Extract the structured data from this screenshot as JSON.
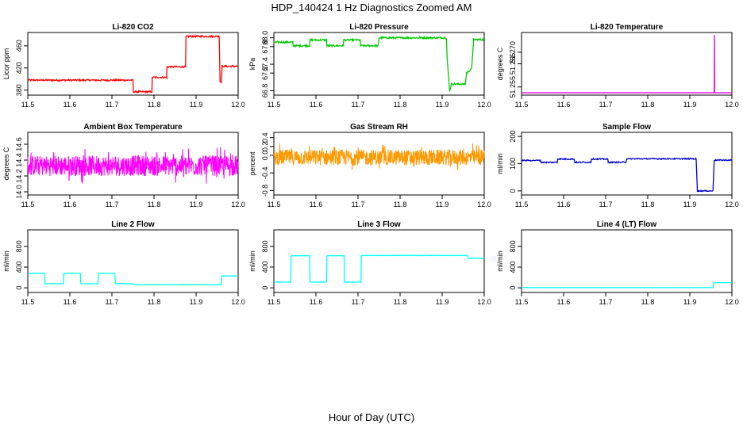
{
  "title": "HDP_140424  1 Hz Diagnostics Zoomed AM",
  "xlabel": "Hour of Day (UTC)",
  "chart_data": [
    {
      "type": "line",
      "title": "Li-820 CO2",
      "ylabel": "Licor ppm",
      "color": "#ff0000",
      "noise": 1.5,
      "xlim": [
        11.5,
        12.0
      ],
      "ylim": [
        371,
        484
      ],
      "xticks": [
        "11.5",
        "11.6",
        "11.7",
        "11.8",
        "11.9",
        "12.0"
      ],
      "yticks": [
        "380",
        "420",
        "460"
      ],
      "x": [
        11.5,
        11.75,
        11.751,
        11.795,
        11.796,
        11.83,
        11.831,
        11.875,
        11.876,
        11.955,
        11.957,
        11.96,
        11.962,
        12.0
      ],
      "y": [
        398,
        398,
        377,
        377,
        403,
        403,
        422,
        422,
        477,
        477,
        395,
        395,
        423,
        423
      ]
    },
    {
      "type": "line",
      "title": "Li-820 Pressure",
      "ylabel": "kPa",
      "color": "#00cc00",
      "noise": 0.02,
      "xlim": [
        11.5,
        12.0
      ],
      "ylim": [
        66.7,
        68.12
      ],
      "xticks": [
        "11.5",
        "11.6",
        "11.7",
        "11.8",
        "11.9",
        "12.0"
      ],
      "yticks": [
        "66.8",
        "67.2",
        "67.4",
        "67.8",
        "68.0"
      ],
      "x": [
        11.5,
        11.545,
        11.546,
        11.585,
        11.586,
        11.625,
        11.626,
        11.665,
        11.666,
        11.705,
        11.706,
        11.748,
        11.75,
        11.91,
        11.912,
        11.918,
        11.922,
        11.955,
        11.958,
        11.97,
        11.975,
        12.0
      ],
      "y": [
        67.9,
        67.9,
        67.82,
        67.82,
        67.95,
        67.95,
        67.82,
        67.82,
        67.95,
        67.95,
        67.82,
        67.82,
        68.0,
        68.0,
        67.5,
        66.8,
        66.95,
        66.95,
        67.2,
        67.3,
        67.96,
        67.96
      ]
    },
    {
      "type": "line",
      "title": "Li-820 Temperature",
      "ylabel": "degrees C",
      "color": "#dd00dd",
      "noise": 0,
      "xlim": [
        11.5,
        12.0
      ],
      "ylim": [
        51.2515,
        51.2785
      ],
      "xticks": [
        "11.5",
        "11.6",
        "11.7",
        "11.8",
        "11.9",
        "12.0"
      ],
      "yticks": [
        "51.255",
        "51.265",
        "51.270"
      ],
      "x": [
        11.5,
        11.958,
        11.9585,
        11.959,
        11.9595,
        12.0
      ],
      "y": [
        51.2525,
        51.2525,
        51.2775,
        51.2525,
        51.2525,
        51.2525
      ]
    },
    {
      "type": "line",
      "title": "Ambient Box Temperature",
      "ylabel": "degrees C",
      "color": "#ff00ff",
      "noise": 0.13,
      "dense": true,
      "xlim": [
        11.5,
        12.0
      ],
      "ylim": [
        13.96,
        14.75
      ],
      "xticks": [
        "11.5",
        "11.6",
        "11.7",
        "11.8",
        "11.9",
        "12.0"
      ],
      "yticks": [
        "14.0",
        "14.2",
        "14.4",
        "14.6"
      ],
      "x": [
        11.5,
        12.0
      ],
      "y": [
        14.33,
        14.33
      ]
    },
    {
      "type": "line",
      "title": "Gas Stream RH",
      "ylabel": "percent",
      "color": "#ff9900",
      "noise": 0.18,
      "dense": true,
      "xlim": [
        11.5,
        12.0
      ],
      "ylim": [
        -0.9,
        0.52
      ],
      "xticks": [
        "11.5",
        "11.6",
        "11.7",
        "11.8",
        "11.9",
        "12.0"
      ],
      "yticks": [
        "-0.8",
        "-0.4",
        "0.0",
        "0.2",
        "0.4"
      ],
      "x": [
        11.5,
        12.0
      ],
      "y": [
        -0.05,
        -0.05
      ]
    },
    {
      "type": "line",
      "title": "Sample Flow",
      "ylabel": "ml/min",
      "color": "#0000cc",
      "noise": 2,
      "xlim": [
        11.5,
        12.0
      ],
      "ylim": [
        -15,
        215
      ],
      "xticks": [
        "11.5",
        "11.6",
        "11.7",
        "11.8",
        "11.9",
        "12.0"
      ],
      "yticks": [
        "0",
        "100",
        "200"
      ],
      "x": [
        11.5,
        11.545,
        11.546,
        11.585,
        11.586,
        11.625,
        11.626,
        11.665,
        11.666,
        11.705,
        11.706,
        11.748,
        11.75,
        11.915,
        11.918,
        11.955,
        11.958,
        12.0
      ],
      "y": [
        112,
        112,
        105,
        105,
        117,
        117,
        105,
        105,
        117,
        117,
        105,
        105,
        118,
        118,
        0,
        0,
        113,
        113
      ]
    },
    {
      "type": "line",
      "title": "Line 2 Flow",
      "ylabel": "ml/min",
      "color": "#00ffff",
      "noise": 3,
      "xlim": [
        11.5,
        12.0
      ],
      "ylim": [
        -90,
        1120
      ],
      "xticks": [
        "11.5",
        "11.6",
        "11.7",
        "11.8",
        "11.9",
        "12.0"
      ],
      "yticks": [
        "0",
        "400",
        "800"
      ],
      "x": [
        11.5,
        11.54,
        11.541,
        11.585,
        11.586,
        11.625,
        11.626,
        11.667,
        11.668,
        11.707,
        11.708,
        11.75,
        11.751,
        11.96,
        11.961,
        12.0
      ],
      "y": [
        280,
        280,
        80,
        80,
        280,
        280,
        80,
        80,
        280,
        280,
        80,
        80,
        60,
        60,
        230,
        230
      ]
    },
    {
      "type": "line",
      "title": "Line 3 Flow",
      "ylabel": "ml/min",
      "color": "#00ffff",
      "noise": 4,
      "xlim": [
        11.5,
        12.0
      ],
      "ylim": [
        -90,
        1120
      ],
      "xticks": [
        "11.5",
        "11.6",
        "11.7",
        "11.8",
        "11.9",
        "12.0"
      ],
      "yticks": [
        "0",
        "400",
        "800"
      ],
      "x": [
        11.5,
        11.54,
        11.541,
        11.585,
        11.586,
        11.625,
        11.626,
        11.667,
        11.668,
        11.707,
        11.708,
        11.96,
        11.962,
        12.0
      ],
      "y": [
        110,
        110,
        620,
        620,
        110,
        110,
        620,
        620,
        110,
        110,
        625,
        625,
        570,
        570
      ]
    },
    {
      "type": "line",
      "title": "Line 4 (LT) Flow",
      "ylabel": "ml/min",
      "color": "#00ffff",
      "noise": 1,
      "xlim": [
        11.5,
        12.0
      ],
      "ylim": [
        -90,
        1120
      ],
      "xticks": [
        "11.5",
        "11.6",
        "11.7",
        "11.8",
        "11.9",
        "12.0"
      ],
      "yticks": [
        "0",
        "400",
        "800"
      ],
      "x": [
        11.5,
        11.955,
        11.957,
        12.0
      ],
      "y": [
        5,
        5,
        100,
        100
      ]
    }
  ]
}
